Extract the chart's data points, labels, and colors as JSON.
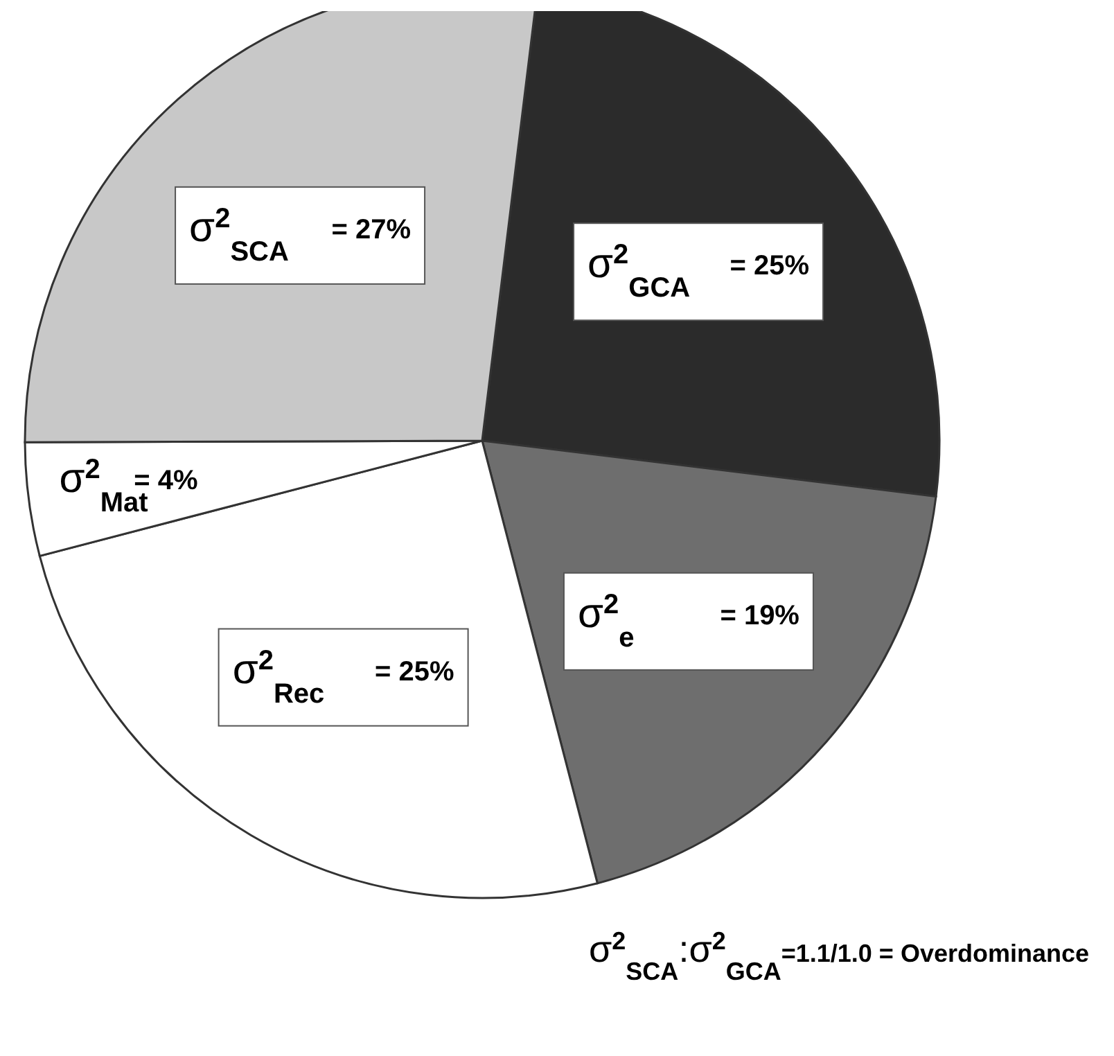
{
  "chart_data": {
    "type": "pie",
    "categories": [
      "σ$^{2}$$_{GCA}$",
      "σ$^{2}$$_{e}$",
      "σ$^{2}$$_{Rec}$",
      "σ$^{2}$$_{Mat}$",
      "σ$^{2}$$_{SCA}$"
    ],
    "values": [
      25,
      19,
      25,
      4,
      27
    ],
    "value_labels": [
      "= 25%",
      "= 19%",
      "= 25%",
      "= 4%",
      "= 27%"
    ],
    "colors": [
      "#2b2b2b",
      "#6e6e6e",
      "#ffffff",
      "#ffffff",
      "#c8c8c8"
    ],
    "annotations": [
      "σ$^{2}$$_{SCA}$:σ$^{2}$$_{GCA}$=1.1/1.0 = Overdominance"
    ]
  }
}
